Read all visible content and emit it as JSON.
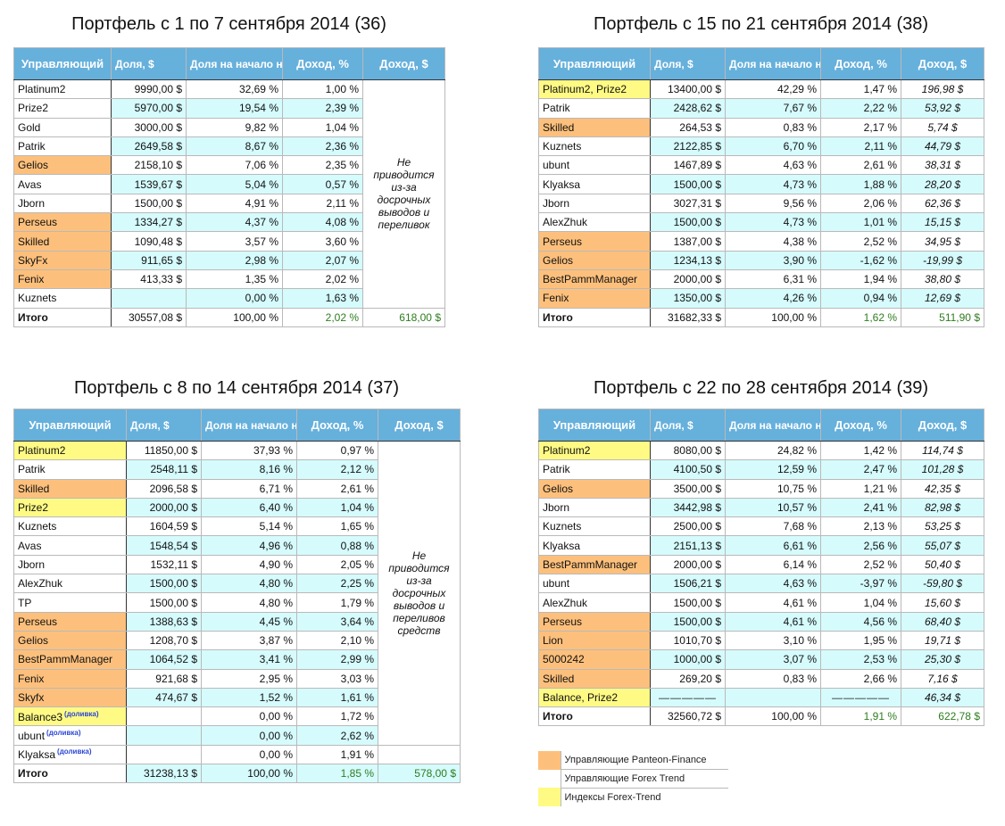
{
  "headers": {
    "manager": "Управляющий",
    "share_usd": "Доля, $",
    "share_pct": "Доля на начало недели, %",
    "income_pct": "Доход, %",
    "income_usd": "Доход, $"
  },
  "colors": {
    "header": "#66b0dc",
    "cyan": "#d6fbfd",
    "panteon": "#fdc07c",
    "index": "#fefa84",
    "total_green": "#2e7d1e",
    "note_blue": "#2a46d6"
  },
  "portfolios": [
    {
      "id": "36",
      "title": "Портфель с 1 по 7 сентября 2014 (36)",
      "note": "Не приводится из-за досрочных выводов и переливок",
      "note_span": 12,
      "rows": [
        {
          "name": "Platinum2",
          "type": "",
          "share_usd": "9990,00 $",
          "share_pct": "32,69 %",
          "income_pct": "1,00 %"
        },
        {
          "name": "Prize2",
          "type": "",
          "share_usd": "5970,00 $",
          "share_pct": "19,54 %",
          "income_pct": "2,39 %"
        },
        {
          "name": "Gold",
          "type": "",
          "share_usd": "3000,00 $",
          "share_pct": "9,82 %",
          "income_pct": "1,04 %"
        },
        {
          "name": "Patrik",
          "type": "",
          "share_usd": "2649,58 $",
          "share_pct": "8,67 %",
          "income_pct": "2,36 %"
        },
        {
          "name": "Gelios",
          "type": "orange",
          "share_usd": "2158,10 $",
          "share_pct": "7,06 %",
          "income_pct": "2,35 %"
        },
        {
          "name": "Avas",
          "type": "",
          "share_usd": "1539,67 $",
          "share_pct": "5,04 %",
          "income_pct": "0,57 %"
        },
        {
          "name": "Jborn",
          "type": "",
          "share_usd": "1500,00 $",
          "share_pct": "4,91 %",
          "income_pct": "2,11 %"
        },
        {
          "name": "Perseus",
          "type": "orange",
          "share_usd": "1334,27 $",
          "share_pct": "4,37 %",
          "income_pct": "4,08 %"
        },
        {
          "name": "Skilled",
          "type": "orange",
          "share_usd": "1090,48 $",
          "share_pct": "3,57 %",
          "income_pct": "3,60 %"
        },
        {
          "name": "SkyFx",
          "type": "orange",
          "share_usd": "911,65 $",
          "share_pct": "2,98 %",
          "income_pct": "2,07 %"
        },
        {
          "name": "Fenix",
          "type": "orange",
          "share_usd": "413,33 $",
          "share_pct": "1,35 %",
          "income_pct": "2,02 %"
        },
        {
          "name": "Kuznets",
          "type": "",
          "share_usd": "",
          "share_pct": "0,00 %",
          "income_pct": "1,63 %"
        }
      ],
      "total": {
        "label": "Итого",
        "share_usd": "30557,08 $",
        "share_pct": "100,00 %",
        "income_pct": "2,02 %",
        "income_usd": "618,00 $"
      }
    },
    {
      "id": "38",
      "title": "Портфель с 15 по 21 сентября 2014 (38)",
      "rows": [
        {
          "name": "Platinum2, Prize2",
          "type": "yellow",
          "share_usd": "13400,00 $",
          "share_pct": "42,29 %",
          "income_pct": "1,47 %",
          "income_usd": "196,98 $"
        },
        {
          "name": "Patrik",
          "type": "",
          "share_usd": "2428,62 $",
          "share_pct": "7,67 %",
          "income_pct": "2,22 %",
          "income_usd": "53,92 $"
        },
        {
          "name": "Skilled",
          "type": "orange",
          "share_usd": "264,53 $",
          "share_pct": "0,83 %",
          "income_pct": "2,17 %",
          "income_usd": "5,74 $"
        },
        {
          "name": "Kuznets",
          "type": "",
          "share_usd": "2122,85 $",
          "share_pct": "6,70 %",
          "income_pct": "2,11 %",
          "income_usd": "44,79 $"
        },
        {
          "name": "ubunt",
          "type": "",
          "share_usd": "1467,89 $",
          "share_pct": "4,63 %",
          "income_pct": "2,61 %",
          "income_usd": "38,31 $"
        },
        {
          "name": "Klyaksa",
          "type": "",
          "share_usd": "1500,00 $",
          "share_pct": "4,73 %",
          "income_pct": "1,88 %",
          "income_usd": "28,20 $"
        },
        {
          "name": "Jborn",
          "type": "",
          "share_usd": "3027,31 $",
          "share_pct": "9,56 %",
          "income_pct": "2,06 %",
          "income_usd": "62,36 $"
        },
        {
          "name": "AlexZhuk",
          "type": "",
          "share_usd": "1500,00 $",
          "share_pct": "4,73 %",
          "income_pct": "1,01 %",
          "income_usd": "15,15 $"
        },
        {
          "name": "Perseus",
          "type": "orange",
          "share_usd": "1387,00 $",
          "share_pct": "4,38 %",
          "income_pct": "2,52 %",
          "income_usd": "34,95 $"
        },
        {
          "name": "Gelios",
          "type": "orange",
          "share_usd": "1234,13 $",
          "share_pct": "3,90 %",
          "income_pct": "-1,62 %",
          "income_usd": "-19,99 $"
        },
        {
          "name": "BestPammManager",
          "type": "orange",
          "share_usd": "2000,00 $",
          "share_pct": "6,31 %",
          "income_pct": "1,94 %",
          "income_usd": "38,80 $"
        },
        {
          "name": "Fenix",
          "type": "orange",
          "share_usd": "1350,00 $",
          "share_pct": "4,26 %",
          "income_pct": "0,94 %",
          "income_usd": "12,69 $"
        }
      ],
      "total": {
        "label": "Итого",
        "share_usd": "31682,33 $",
        "share_pct": "100,00 %",
        "income_pct": "1,62 %",
        "income_usd": "511,90 $"
      }
    },
    {
      "id": "37",
      "title": "Портфель с 8 по 14 сентября 2014 (37)",
      "note": "Не приводится из-за досрочных выводов и переливов средств",
      "note_span": 16,
      "rows": [
        {
          "name": "Platinum2",
          "type": "yellow",
          "share_usd": "11850,00 $",
          "share_pct": "37,93 %",
          "income_pct": "0,97 %"
        },
        {
          "name": "Patrik",
          "type": "",
          "share_usd": "2548,11 $",
          "share_pct": "8,16 %",
          "income_pct": "2,12 %"
        },
        {
          "name": "Skilled",
          "type": "orange",
          "share_usd": "2096,58 $",
          "share_pct": "6,71 %",
          "income_pct": "2,61 %"
        },
        {
          "name": "Prize2",
          "type": "yellow",
          "share_usd": "2000,00 $",
          "share_pct": "6,40 %",
          "income_pct": "1,04 %"
        },
        {
          "name": "Kuznets",
          "type": "",
          "share_usd": "1604,59 $",
          "share_pct": "5,14 %",
          "income_pct": "1,65 %"
        },
        {
          "name": "Avas",
          "type": "",
          "share_usd": "1548,54 $",
          "share_pct": "4,96 %",
          "income_pct": "0,88 %"
        },
        {
          "name": "Jborn",
          "type": "",
          "share_usd": "1532,11 $",
          "share_pct": "4,90 %",
          "income_pct": "2,05 %"
        },
        {
          "name": "AlexZhuk",
          "type": "",
          "share_usd": "1500,00 $",
          "share_pct": "4,80 %",
          "income_pct": "2,25 %"
        },
        {
          "name": "TP",
          "type": "",
          "share_usd": "1500,00 $",
          "share_pct": "4,80 %",
          "income_pct": "1,79 %"
        },
        {
          "name": "Perseus",
          "type": "orange",
          "share_usd": "1388,63 $",
          "share_pct": "4,45 %",
          "income_pct": "3,64 %"
        },
        {
          "name": "Gelios",
          "type": "orange",
          "share_usd": "1208,70 $",
          "share_pct": "3,87 %",
          "income_pct": "2,10 %"
        },
        {
          "name": "BestPammManager",
          "type": "orange",
          "share_usd": "1064,52 $",
          "share_pct": "3,41 %",
          "income_pct": "2,99 %"
        },
        {
          "name": "Fenix",
          "type": "orange",
          "share_usd": "921,68 $",
          "share_pct": "2,95 %",
          "income_pct": "3,03 %"
        },
        {
          "name": "Skyfx",
          "type": "orange",
          "share_usd": "474,67 $",
          "share_pct": "1,52 %",
          "income_pct": "1,61 %"
        },
        {
          "name": "Balance3",
          "tag": "(доливка)",
          "type": "yellow",
          "share_usd": "",
          "share_pct": "0,00 %",
          "income_pct": "1,72 %"
        },
        {
          "name": "ubunt",
          "tag": "(доливка)",
          "type": "",
          "share_usd": "",
          "share_pct": "0,00 %",
          "income_pct": "2,62 %"
        },
        {
          "name": "Klyaksa",
          "tag": "(доливка)",
          "type": "",
          "share_usd": "",
          "share_pct": "0,00 %",
          "income_pct": "1,91 %",
          "income_usd": ""
        }
      ],
      "total": {
        "label": "Итого",
        "share_usd": "31238,13 $",
        "share_pct": "100,00 %",
        "income_pct": "1,85 %",
        "income_usd": "578,00 $",
        "cyan": true
      }
    },
    {
      "id": "39",
      "title": "Портфель с 22 по 28 сентября 2014 (39)",
      "rows": [
        {
          "name": "Platinum2",
          "type": "yellow",
          "share_usd": "8080,00 $",
          "share_pct": "24,82 %",
          "income_pct": "1,42 %",
          "income_usd": "114,74 $"
        },
        {
          "name": "Patrik",
          "type": "",
          "share_usd": "4100,50 $",
          "share_pct": "12,59 %",
          "income_pct": "2,47 %",
          "income_usd": "101,28 $"
        },
        {
          "name": "Gelios",
          "type": "orange",
          "share_usd": "3500,00 $",
          "share_pct": "10,75 %",
          "income_pct": "1,21 %",
          "income_usd": "42,35 $"
        },
        {
          "name": "Jborn",
          "type": "",
          "share_usd": "3442,98 $",
          "share_pct": "10,57 %",
          "income_pct": "2,41 %",
          "income_usd": "82,98 $"
        },
        {
          "name": "Kuznets",
          "type": "",
          "share_usd": "2500,00 $",
          "share_pct": "7,68 %",
          "income_pct": "2,13 %",
          "income_usd": "53,25 $"
        },
        {
          "name": "Klyaksa",
          "type": "",
          "share_usd": "2151,13 $",
          "share_pct": "6,61 %",
          "income_pct": "2,56 %",
          "income_usd": "55,07 $"
        },
        {
          "name": "BestPammManager",
          "type": "orange",
          "share_usd": "2000,00 $",
          "share_pct": "6,14 %",
          "income_pct": "2,52 %",
          "income_usd": "50,40 $"
        },
        {
          "name": "ubunt",
          "type": "",
          "share_usd": "1506,21 $",
          "share_pct": "4,63 %",
          "income_pct": "-3,97 %",
          "income_usd": "-59,80 $"
        },
        {
          "name": "AlexZhuk",
          "type": "",
          "share_usd": "1500,00 $",
          "share_pct": "4,61 %",
          "income_pct": "1,04 %",
          "income_usd": "15,60 $"
        },
        {
          "name": "Perseus",
          "type": "orange",
          "share_usd": "1500,00 $",
          "share_pct": "4,61 %",
          "income_pct": "4,56 %",
          "income_usd": "68,40 $"
        },
        {
          "name": "Lion",
          "type": "orange",
          "share_usd": "1010,70 $",
          "share_pct": "3,10 %",
          "income_pct": "1,95 %",
          "income_usd": "19,71 $"
        },
        {
          "name": "5000242",
          "type": "orange",
          "share_usd": "1000,00 $",
          "share_pct": "3,07 %",
          "income_pct": "2,53 %",
          "income_usd": "25,30 $"
        },
        {
          "name": "Skilled",
          "type": "orange",
          "share_usd": "269,20 $",
          "share_pct": "0,83 %",
          "income_pct": "2,66 %",
          "income_usd": "7,16 $"
        },
        {
          "name": "Balance, Prize2",
          "type": "yellow",
          "share_usd": "—————",
          "share_pct": "",
          "income_pct": "—————",
          "income_usd": "46,34 $",
          "dashes": true
        }
      ],
      "total": {
        "label": "Итого",
        "share_usd": "32560,72 $",
        "share_pct": "100,00 %",
        "income_pct": "1,91 %",
        "income_usd": "622,78 $"
      }
    }
  ],
  "legend": [
    {
      "label": "Управляющие Panteon-Finance",
      "type": "orange"
    },
    {
      "label": "Управляющие Forex Trend",
      "type": "white"
    },
    {
      "label": "Индексы Forex-Trend",
      "type": "yellow"
    }
  ]
}
